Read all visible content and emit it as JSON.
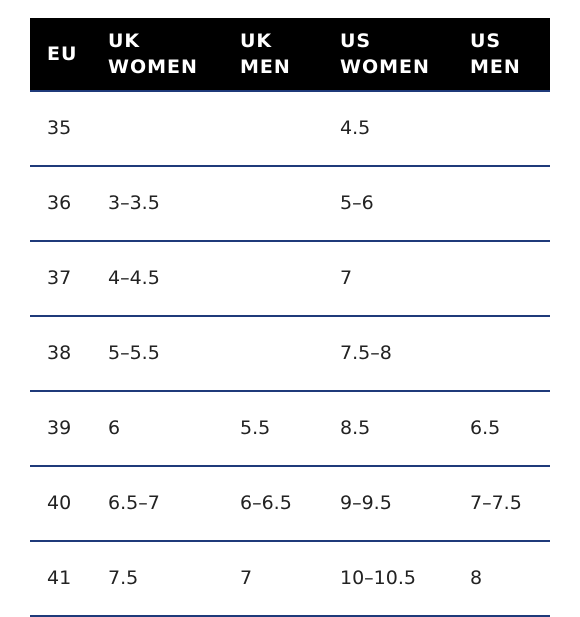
{
  "table": {
    "header": [
      [
        "EU"
      ],
      [
        "UK",
        "WOMEN"
      ],
      [
        "UK",
        "MEN"
      ],
      [
        "US",
        "WOMEN"
      ],
      [
        "US",
        "MEN"
      ]
    ],
    "rows": [
      [
        "35",
        null,
        null,
        "4.5",
        null
      ],
      [
        "36",
        "3–3.5",
        null,
        "5–6",
        null
      ],
      [
        "37",
        "4–4.5",
        null,
        "7",
        null
      ],
      [
        "38",
        "5–5.5",
        null,
        "7.5–8",
        null
      ],
      [
        "39",
        "6",
        "5.5",
        "8.5",
        "6.5"
      ],
      [
        "40",
        "6.5–7",
        "6–6.5",
        "9–9.5",
        "7–7.5"
      ],
      [
        "41",
        "7.5",
        "7",
        "10–10.5",
        "8"
      ]
    ]
  }
}
